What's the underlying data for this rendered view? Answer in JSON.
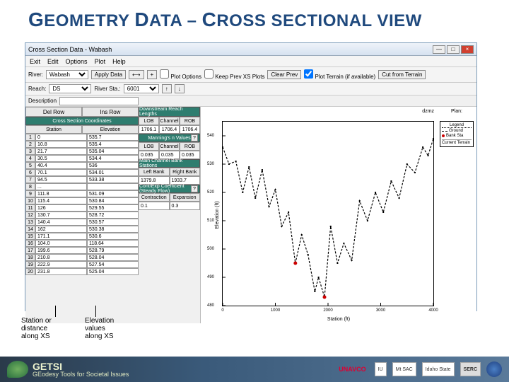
{
  "slide": {
    "title_part1": "G",
    "title_part2": "EOMETRY ",
    "title_part3": "D",
    "title_part4": "ATA – ",
    "title_part5": "C",
    "title_part6": "ROSS SECTIONAL VIEW"
  },
  "window": {
    "title": "Cross Section Data - Wabash",
    "min": "—",
    "max": "□",
    "close": "×",
    "menu": [
      "Exit",
      "Edit",
      "Options",
      "Plot",
      "Help"
    ],
    "toolbar": {
      "river_label": "River:",
      "river_val": "Wabash",
      "apply_btn": "Apply Data",
      "reach_label": "Reach:",
      "reach_val": "DS",
      "riversta_label": "River Sta.:",
      "riversta_val": "6001",
      "plotoptions": "Plot Options",
      "keepxs": "Keep Prev XS Plots",
      "clearprev": "Clear Prev",
      "plotterrain_chk": "Plot Terrain (if available)",
      "cutfromterrain": "Cut from Terrain",
      "desc_label": "Description"
    },
    "left": {
      "del_row": "Del Row",
      "ins_row": "Ins Row",
      "drl_title": "Downstream Reach Lengths",
      "coord_title": "Cross Section Coordinates",
      "lob_h": "LOB",
      "chn_h": "Channel",
      "rob_h": "ROB",
      "lob_v": "1706.1",
      "chn_v": "1706.4",
      "rob_v": "1706.4",
      "sta_h": "Station",
      "elv_h": "Elevation",
      "manning_title": "Manning's n Values",
      "manning_lob_h": "LOB",
      "manning_chn_h": "Channel",
      "manning_rob_h": "ROB",
      "manning_lob": "0.035",
      "manning_chn": "0.035",
      "manning_rob": "0.035",
      "bank_title": "Main Channel Bank Stations",
      "bank_left_h": "Left Bank",
      "bank_right_h": "Right Bank",
      "bank_left": "1379.8",
      "bank_right": "1933.7",
      "contexp_title": "Cont\\Exp Coefficient (Steady Flow)",
      "cont_h": "Contraction",
      "exp_h": "Expansion",
      "cont_v": "0.1",
      "exp_v": "0.3",
      "rows": [
        {
          "n": "1",
          "s": "0",
          "e": "535.7"
        },
        {
          "n": "2",
          "s": "10.8",
          "e": "535.4"
        },
        {
          "n": "3",
          "s": "21.7",
          "e": "535.04"
        },
        {
          "n": "4",
          "s": "30.5",
          "e": "534.4"
        },
        {
          "n": "5",
          "s": "40.4",
          "e": "536"
        },
        {
          "n": "6",
          "s": "70.1",
          "e": "534.01"
        },
        {
          "n": "7",
          "s": "94.5",
          "e": "533.38"
        },
        {
          "n": "8",
          "s": "...",
          "e": ""
        },
        {
          "n": "9",
          "s": "111.8",
          "e": "531.09"
        },
        {
          "n": "10",
          "s": "115.4",
          "e": "530.84"
        },
        {
          "n": "11",
          "s": "126",
          "e": "529.55"
        },
        {
          "n": "12",
          "s": "130.7",
          "e": "528.72"
        },
        {
          "n": "13",
          "s": "140.4",
          "e": "530.57"
        },
        {
          "n": "14",
          "s": "162",
          "e": "530.38"
        },
        {
          "n": "15",
          "s": "171.1",
          "e": "530.6"
        },
        {
          "n": "16",
          "s": "104.0",
          "e": "118.64"
        },
        {
          "n": "17",
          "s": "199.6",
          "e": "528.79"
        },
        {
          "n": "18",
          "s": "210.8",
          "e": "528.04"
        },
        {
          "n": "19",
          "s": "222.9",
          "e": "527.54"
        },
        {
          "n": "20",
          "s": "231.8",
          "e": "525.04"
        }
      ]
    },
    "plot": {
      "hdr_dzmz": "dzmz",
      "hdr_plan": "Plan:",
      "ylabel": "Elevation (ft)",
      "xlabel": "Station (ft)",
      "legend_title": "Legend",
      "legend_items": [
        "Ground",
        "Bank Sta"
      ],
      "legend_extra": "Current Terrain",
      "ylim": [
        480,
        545
      ],
      "xlim": [
        0,
        4000
      ],
      "yticks": [
        480,
        490,
        500,
        510,
        520,
        530,
        540
      ],
      "xticks": [
        0,
        1000,
        2000,
        3000,
        4000
      ],
      "line_color": "#000000",
      "bank_marker_color": "#cc0000",
      "background": "#ffffff",
      "ground_pts": [
        [
          0,
          536
        ],
        [
          120,
          530
        ],
        [
          250,
          531
        ],
        [
          380,
          520
        ],
        [
          500,
          529
        ],
        [
          620,
          518
        ],
        [
          750,
          528
        ],
        [
          880,
          515
        ],
        [
          1000,
          521
        ],
        [
          1120,
          508
        ],
        [
          1250,
          513
        ],
        [
          1380,
          495
        ],
        [
          1500,
          505
        ],
        [
          1620,
          498
        ],
        [
          1750,
          485
        ],
        [
          1820,
          490
        ],
        [
          1933,
          483
        ],
        [
          2050,
          508
        ],
        [
          2180,
          495
        ],
        [
          2300,
          502
        ],
        [
          2450,
          496
        ],
        [
          2600,
          517
        ],
        [
          2750,
          510
        ],
        [
          2900,
          520
        ],
        [
          3050,
          513
        ],
        [
          3200,
          524
        ],
        [
          3350,
          518
        ],
        [
          3500,
          530
        ],
        [
          3650,
          527
        ],
        [
          3800,
          536
        ],
        [
          3900,
          533
        ],
        [
          4000,
          539
        ]
      ],
      "bank_stations": [
        [
          1380,
          495
        ],
        [
          1933,
          483
        ]
      ]
    }
  },
  "annotations": {
    "a1_l1": "Station or",
    "a1_l2": "distance",
    "a1_l3": "along XS",
    "a2_l1": "Elevation",
    "a2_l2": "values",
    "a2_l3": "along XS"
  },
  "footer": {
    "brand1": "GETSI",
    "brand2": "GEodesy Tools for Societal Issues",
    "unavco": "UNAVCO",
    "iu": "IU",
    "mtsac": "Mt SAC",
    "idaho": "Idaho State",
    "serc": "SERC"
  }
}
